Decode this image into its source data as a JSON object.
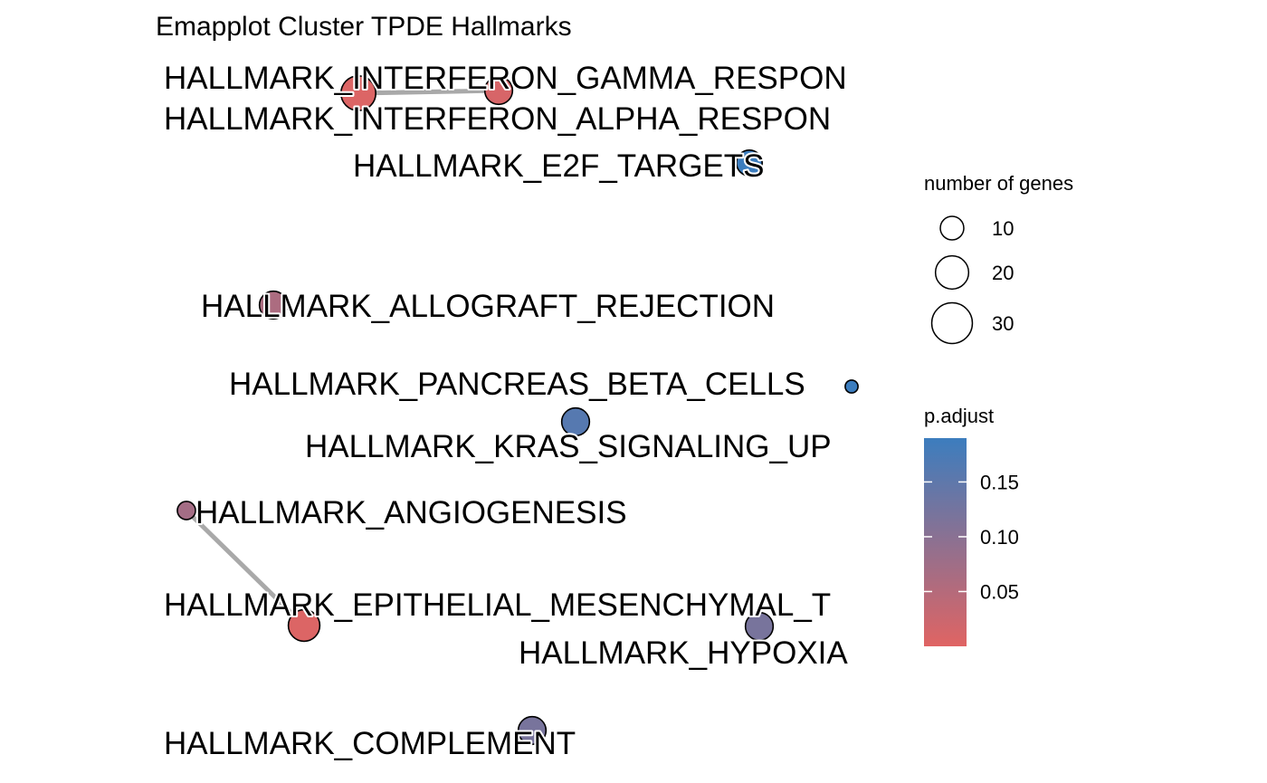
{
  "title": "Emapplot Cluster TPDE Hallmarks",
  "colors": {
    "low": "#E06463",
    "high": "#3C7DBE",
    "edge": "#A9A9A9",
    "outline": "#000000"
  },
  "nodes": [
    {
      "id": "ifn_gamma",
      "label": "HALLMARK_INTERFERON_GAMMA_RESPONSE",
      "display": "HALLMARK_INTERFERON_GAMMA_RESPON",
      "p_adjust": 0.005,
      "genes": 22
    },
    {
      "id": "ifn_alpha",
      "label": "HALLMARK_INTERFERON_ALPHA_RESPONSE",
      "display": "HALLMARK_INTERFERON_ALPHA_RESPON",
      "p_adjust": 0.01,
      "genes": 14
    },
    {
      "id": "e2f",
      "label": "HALLMARK_E2F_TARGETS",
      "display": "HALLMARK_E2F_TARGETS",
      "p_adjust": 0.19,
      "genes": 12
    },
    {
      "id": "allograft",
      "label": "HALLMARK_ALLOGRAFT_REJECTION",
      "display": "HALLMARK_ALLOGRAFT_REJECTION",
      "p_adjust": 0.06,
      "genes": 14
    },
    {
      "id": "pancreas",
      "label": "HALLMARK_PANCREAS_BETA_CELLS",
      "display": "HALLMARK_PANCREAS_BETA_CELLS",
      "p_adjust": 0.19,
      "genes": 3
    },
    {
      "id": "kras",
      "label": "HALLMARK_KRAS_SIGNALING_UP",
      "display": "HALLMARK_KRAS_SIGNALING_UP",
      "p_adjust": 0.16,
      "genes": 14
    },
    {
      "id": "angio",
      "label": "HALLMARK_ANGIOGENESIS",
      "display": "HALLMARK_ANGIOGENESIS",
      "p_adjust": 0.07,
      "genes": 6
    },
    {
      "id": "emt",
      "label": "HALLMARK_EPITHELIAL_MESENCHYMAL_TRANSITION",
      "display": "HALLMARK_EPITHELIAL_MESENCHYMAL_T",
      "p_adjust": 0.005,
      "genes": 18
    },
    {
      "id": "hypoxia",
      "label": "HALLMARK_HYPOXIA",
      "display": "HALLMARK_HYPOXIA",
      "p_adjust": 0.12,
      "genes": 14
    },
    {
      "id": "complement",
      "label": "HALLMARK_COMPLEMENT",
      "display": "HALLMARK_COMPLEMENT",
      "p_adjust": 0.12,
      "genes": 14
    }
  ],
  "edges": [
    {
      "from": "ifn_gamma",
      "to": "ifn_alpha"
    },
    {
      "from": "angio",
      "to": "emt"
    }
  ],
  "legend_size": {
    "title": "number of genes",
    "items": [
      {
        "label": "10",
        "genes": 10
      },
      {
        "label": "20",
        "genes": 20
      },
      {
        "label": "30",
        "genes": 30
      }
    ]
  },
  "legend_color": {
    "title": "p.adjust",
    "range": [
      0.0,
      0.19
    ],
    "ticks": [
      {
        "label": "0.15",
        "value": 0.15
      },
      {
        "label": "0.10",
        "value": 0.1
      },
      {
        "label": "0.05",
        "value": 0.05
      }
    ]
  }
}
